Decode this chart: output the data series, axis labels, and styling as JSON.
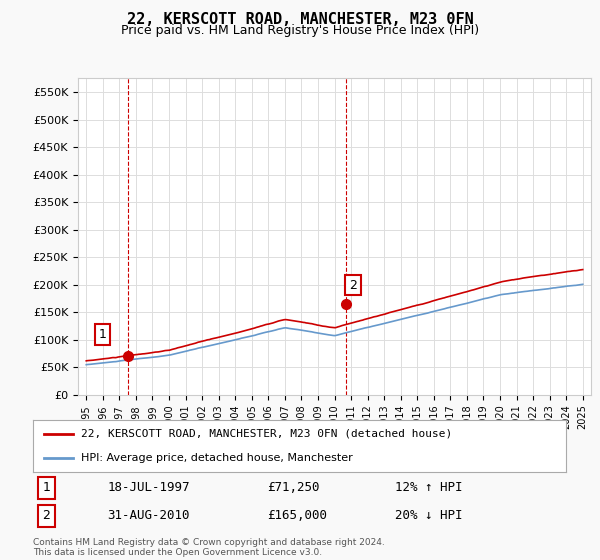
{
  "title": "22, KERSCOTT ROAD, MANCHESTER, M23 0FN",
  "subtitle": "Price paid vs. HM Land Registry's House Price Index (HPI)",
  "ylim": [
    0,
    575000
  ],
  "yticks": [
    0,
    50000,
    100000,
    150000,
    200000,
    250000,
    300000,
    350000,
    400000,
    450000,
    500000,
    550000
  ],
  "ytick_labels": [
    "£0",
    "£50K",
    "£100K",
    "£150K",
    "£200K",
    "£250K",
    "£300K",
    "£350K",
    "£400K",
    "£450K",
    "£500K",
    "£550K"
  ],
  "x_start_year": 1995,
  "x_end_year": 2025,
  "red_line_color": "#cc0000",
  "blue_line_color": "#6699cc",
  "marker1_year": 1997.55,
  "marker1_value": 71250,
  "marker2_year": 2010.67,
  "marker2_value": 165000,
  "vline1_year": 1997.55,
  "vline2_year": 2010.67,
  "vline_color": "#cc0000",
  "legend_line1": "22, KERSCOTT ROAD, MANCHESTER, M23 0FN (detached house)",
  "legend_line2": "HPI: Average price, detached house, Manchester",
  "table_row1_num": "1",
  "table_row1_date": "18-JUL-1997",
  "table_row1_price": "£71,250",
  "table_row1_hpi": "12% ↑ HPI",
  "table_row2_num": "2",
  "table_row2_date": "31-AUG-2010",
  "table_row2_price": "£165,000",
  "table_row2_hpi": "20% ↓ HPI",
  "footer": "Contains HM Land Registry data © Crown copyright and database right 2024.\nThis data is licensed under the Open Government Licence v3.0.",
  "bg_color": "#f9f9f9",
  "plot_bg_color": "#ffffff",
  "grid_color": "#dddddd"
}
